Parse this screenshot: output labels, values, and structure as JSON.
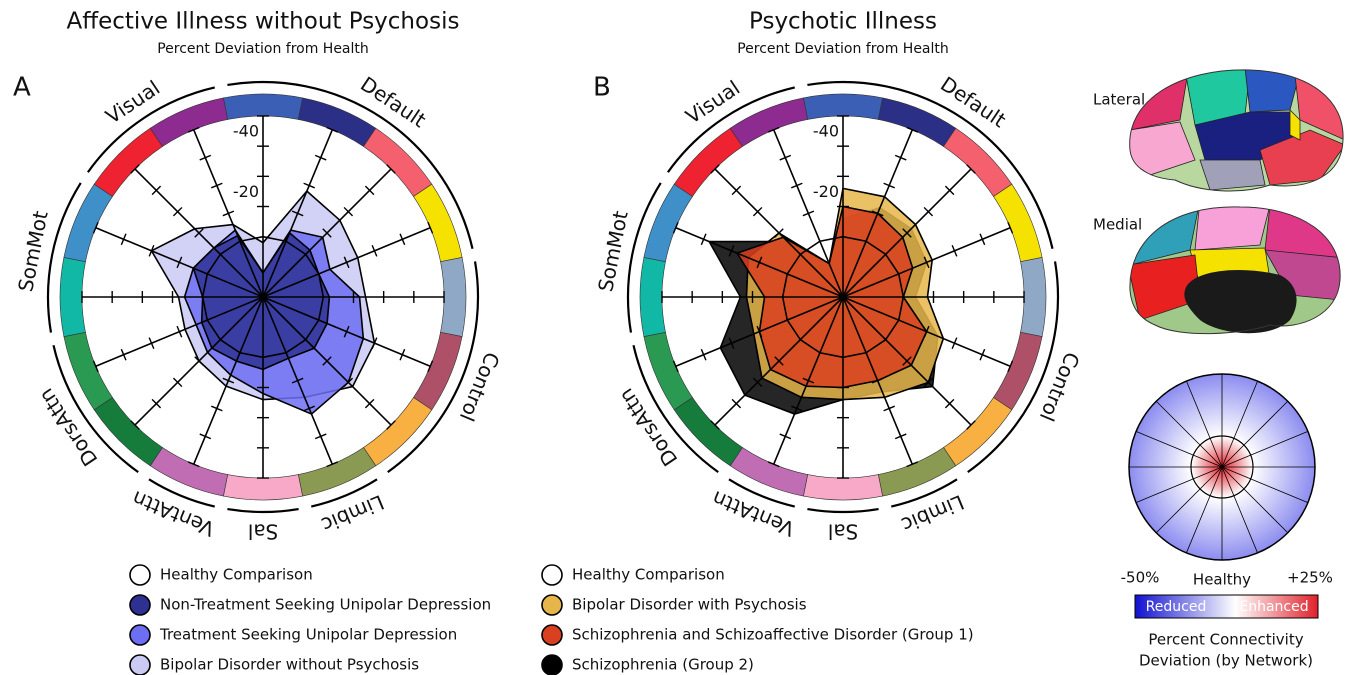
{
  "chart_data": [
    {
      "type": "radar",
      "panel": "A",
      "title": "Affective Illness without Psychosis",
      "subtitle": "Percent Deviation from Health",
      "rlim": [
        20,
        -40
      ],
      "rticks": [
        -40,
        -20
      ],
      "minor_ticks": [
        -30,
        -10
      ],
      "segment_colors": [
        "#3a5fb5",
        "#2b2f86",
        "#f5606f",
        "#f6e200",
        "#8fa8c6",
        "#ad5068",
        "#f9b042",
        "#8b9a52",
        "#f8a9c8",
        "#c06db4",
        "#167c3c",
        "#2a9a52",
        "#12b8a6",
        "#3f8fc9",
        "#ee2230",
        "#8e2b91"
      ],
      "groups": [
        {
          "label": "Default",
          "size": 4
        },
        {
          "label": "Control",
          "size": 3
        },
        {
          "label": "Limbic",
          "size": 1
        },
        {
          "label": "Sal",
          "size": 1
        },
        {
          "label": "VentAttn",
          "size": 1
        },
        {
          "label": "DorsAttn",
          "size": 2
        },
        {
          "label": "SomMot",
          "size": 2
        },
        {
          "label": "Visual",
          "size": 2
        }
      ],
      "series": [
        {
          "name": "Healthy Comparison",
          "color": "#ffffff",
          "filled": false,
          "values": [
            0,
            0,
            0,
            0,
            0,
            0,
            0,
            0,
            0,
            0,
            0,
            0,
            0,
            0,
            0,
            0
          ]
        },
        {
          "name": "Non-Treatment Seeking Unipolar Depression",
          "color": "#2e3192",
          "values": [
            12,
            -3,
            -2,
            0,
            -2,
            -3,
            -4,
            -2,
            -4,
            -3,
            -4,
            -2,
            0,
            -5,
            -3,
            -2
          ]
        },
        {
          "name": "Treatment Seeking Unipolar Depression",
          "color": "#6e6ef2",
          "values": [
            12,
            -4,
            -8,
            -4,
            -12,
            -16,
            -20,
            -22,
            -12,
            -8,
            -6,
            -4,
            -6,
            -5,
            -3,
            -4
          ]
        },
        {
          "name": "Bipolar Disorder without Psychosis",
          "color": "#cacaf5",
          "values": [
            2,
            -18,
            -16,
            -14,
            -14,
            -20,
            -22,
            -16,
            -14,
            -12,
            -10,
            -8,
            -8,
            -20,
            -12,
            -6
          ]
        }
      ]
    },
    {
      "type": "radar",
      "panel": "B",
      "title": "Psychotic Illness",
      "subtitle": "Percent Deviation from Health",
      "rlim": [
        20,
        -40
      ],
      "rticks": [
        -40,
        -20
      ],
      "minor_ticks": [
        -30,
        -10
      ],
      "segment_colors": [
        "#3a5fb5",
        "#2b2f86",
        "#f5606f",
        "#f6e200",
        "#8fa8c6",
        "#ad5068",
        "#f9b042",
        "#8b9a52",
        "#f8a9c8",
        "#c06db4",
        "#167c3c",
        "#2a9a52",
        "#12b8a6",
        "#3f8fc9",
        "#ee2230",
        "#8e2b91"
      ],
      "groups": [
        {
          "label": "Default",
          "size": 4
        },
        {
          "label": "Control",
          "size": 3
        },
        {
          "label": "Limbic",
          "size": 1
        },
        {
          "label": "Sal",
          "size": 1
        },
        {
          "label": "VentAttn",
          "size": 1
        },
        {
          "label": "DorsAttn",
          "size": 2
        },
        {
          "label": "SomMot",
          "size": 2
        },
        {
          "label": "Visual",
          "size": 2
        }
      ],
      "series": [
        {
          "name": "Healthy Comparison",
          "color": "#ffffff",
          "filled": false,
          "values": [
            0,
            0,
            0,
            0,
            0,
            0,
            0,
            0,
            0,
            0,
            0,
            0,
            0,
            0,
            0,
            0
          ]
        },
        {
          "name": "Bipolar Disorder with Psychosis",
          "color": "#e6b64a",
          "values": [
            -16,
            -16,
            -14,
            -12,
            -8,
            -16,
            -20,
            -16,
            -14,
            -16,
            -18,
            -12,
            -12,
            -14,
            -10,
            8
          ]
        },
        {
          "name": "Schizophrenia and Schizoaffective Disorder (Group 1)",
          "color": "#d9401f",
          "values": [
            -10,
            -10,
            -8,
            -5,
            0,
            -10,
            -12,
            -10,
            -10,
            -12,
            -14,
            -10,
            -6,
            -18,
            -8,
            8
          ]
        },
        {
          "name": "Schizophrenia (Group 2)",
          "color": "#000000",
          "values": [
            -6,
            -12,
            -12,
            -10,
            -4,
            -14,
            -22,
            -14,
            -14,
            -22,
            -26,
            -24,
            -14,
            -28,
            -6,
            8
          ]
        }
      ]
    }
  ],
  "brain": {
    "lateral_label": "Lateral",
    "medial_label": "Medial"
  },
  "key": {
    "min_label": "-50%",
    "mid_label": "Healthy",
    "max_label": "+25%",
    "reduced_label": "Reduced",
    "enhanced_label": "Enhanced",
    "caption": [
      "Percent Connectivity",
      "Deviation (by Network)"
    ]
  }
}
